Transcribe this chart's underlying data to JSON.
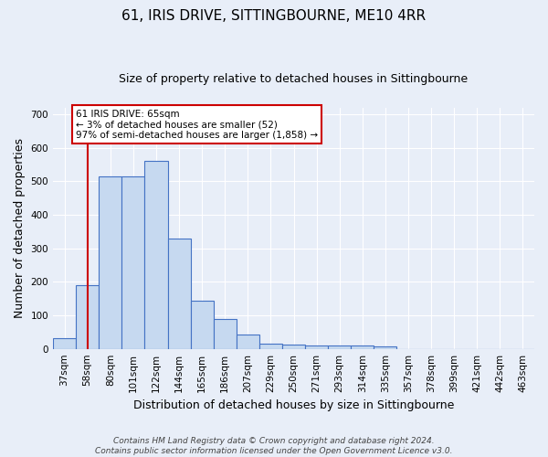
{
  "title": "61, IRIS DRIVE, SITTINGBOURNE, ME10 4RR",
  "subtitle": "Size of property relative to detached houses in Sittingbourne",
  "xlabel": "Distribution of detached houses by size in Sittingbourne",
  "ylabel": "Number of detached properties",
  "categories": [
    "37sqm",
    "58sqm",
    "80sqm",
    "101sqm",
    "122sqm",
    "144sqm",
    "165sqm",
    "186sqm",
    "207sqm",
    "229sqm",
    "250sqm",
    "271sqm",
    "293sqm",
    "314sqm",
    "335sqm",
    "357sqm",
    "378sqm",
    "399sqm",
    "421sqm",
    "442sqm",
    "463sqm"
  ],
  "values": [
    33,
    190,
    515,
    515,
    560,
    328,
    145,
    88,
    42,
    15,
    12,
    10,
    10,
    10,
    6,
    0,
    0,
    0,
    0,
    0,
    0
  ],
  "bar_color": "#c6d9f0",
  "bar_edge_color": "#4472c4",
  "vline_x": 1,
  "vline_color": "#cc0000",
  "annotation_text": "61 IRIS DRIVE: 65sqm\n← 3% of detached houses are smaller (52)\n97% of semi-detached houses are larger (1,858) →",
  "annotation_box_color": "#ffffff",
  "annotation_box_edge": "#cc0000",
  "ylim": [
    0,
    720
  ],
  "yticks": [
    0,
    100,
    200,
    300,
    400,
    500,
    600,
    700
  ],
  "footer": "Contains HM Land Registry data © Crown copyright and database right 2024.\nContains public sector information licensed under the Open Government Licence v3.0.",
  "bg_color": "#e8eef8",
  "grid_color": "#ffffff",
  "title_fontsize": 11,
  "subtitle_fontsize": 9,
  "axis_label_fontsize": 9,
  "tick_fontsize": 7.5,
  "footer_fontsize": 6.5,
  "annotation_fontsize": 7.5
}
